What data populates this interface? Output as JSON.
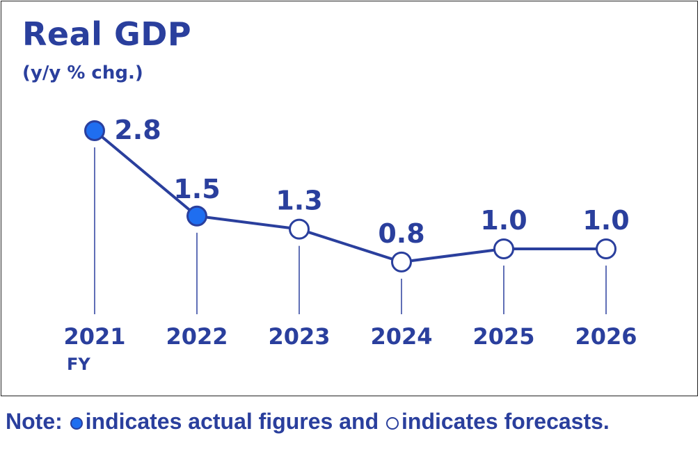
{
  "chart_data": {
    "type": "line",
    "title": "Real GDP",
    "subtitle": "(y/y % chg.)",
    "categories": [
      "2021",
      "2022",
      "2023",
      "2024",
      "2025",
      "2026"
    ],
    "x_suffix_label": "FY",
    "values": [
      2.8,
      1.5,
      1.3,
      0.8,
      1.0,
      1.0
    ],
    "value_labels": [
      "2.8",
      "1.5",
      "1.3",
      "0.8",
      "1.0",
      "1.0"
    ],
    "point_kind": [
      "actual",
      "actual",
      "forecast",
      "forecast",
      "forecast",
      "forecast"
    ],
    "colors": {
      "line": "#2a3f9d",
      "actual_fill": "#1f6ef0",
      "forecast_fill": "#ffffff",
      "text": "#2a3f9d"
    }
  },
  "note": {
    "prefix": "Note:",
    "actual_text": "indicates actual figures and",
    "forecast_text": "indicates forecasts."
  }
}
